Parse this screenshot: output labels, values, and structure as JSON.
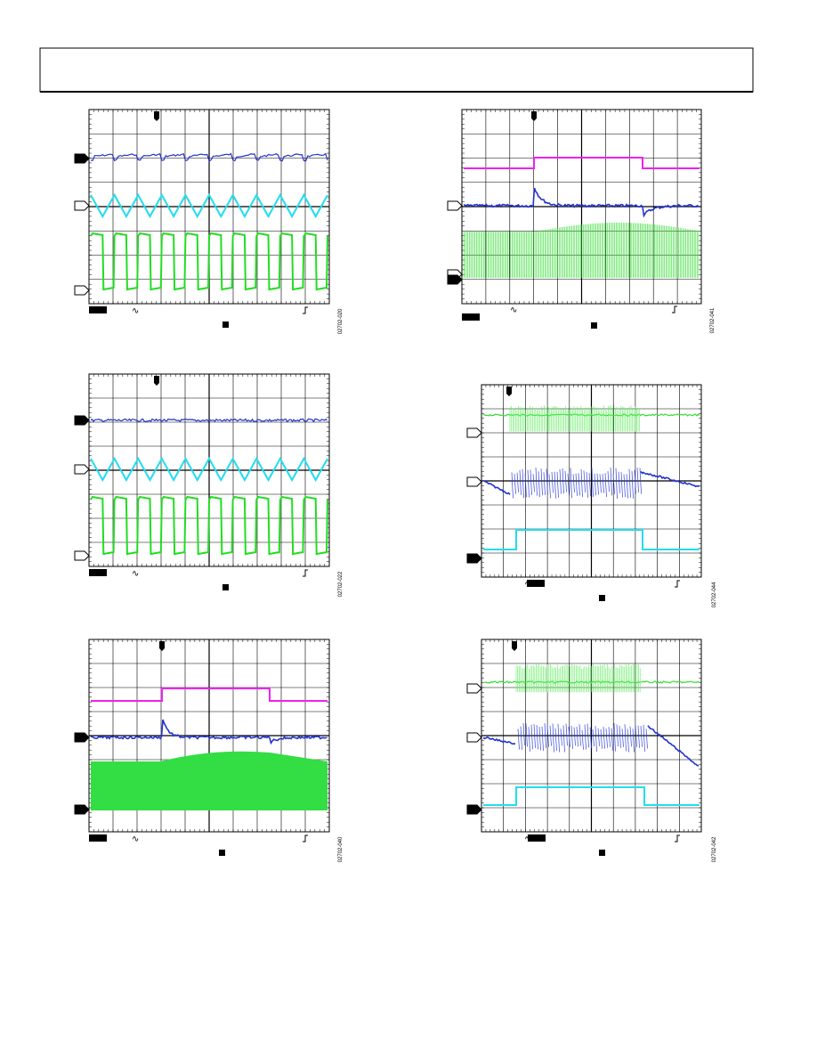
{
  "figures": [
    {
      "id": "02702-020"
    },
    {
      "id": "02702-041"
    },
    {
      "id": "02702-022"
    },
    {
      "id": "02702-044"
    },
    {
      "id": "02702-040"
    },
    {
      "id": "02702-042"
    }
  ]
}
